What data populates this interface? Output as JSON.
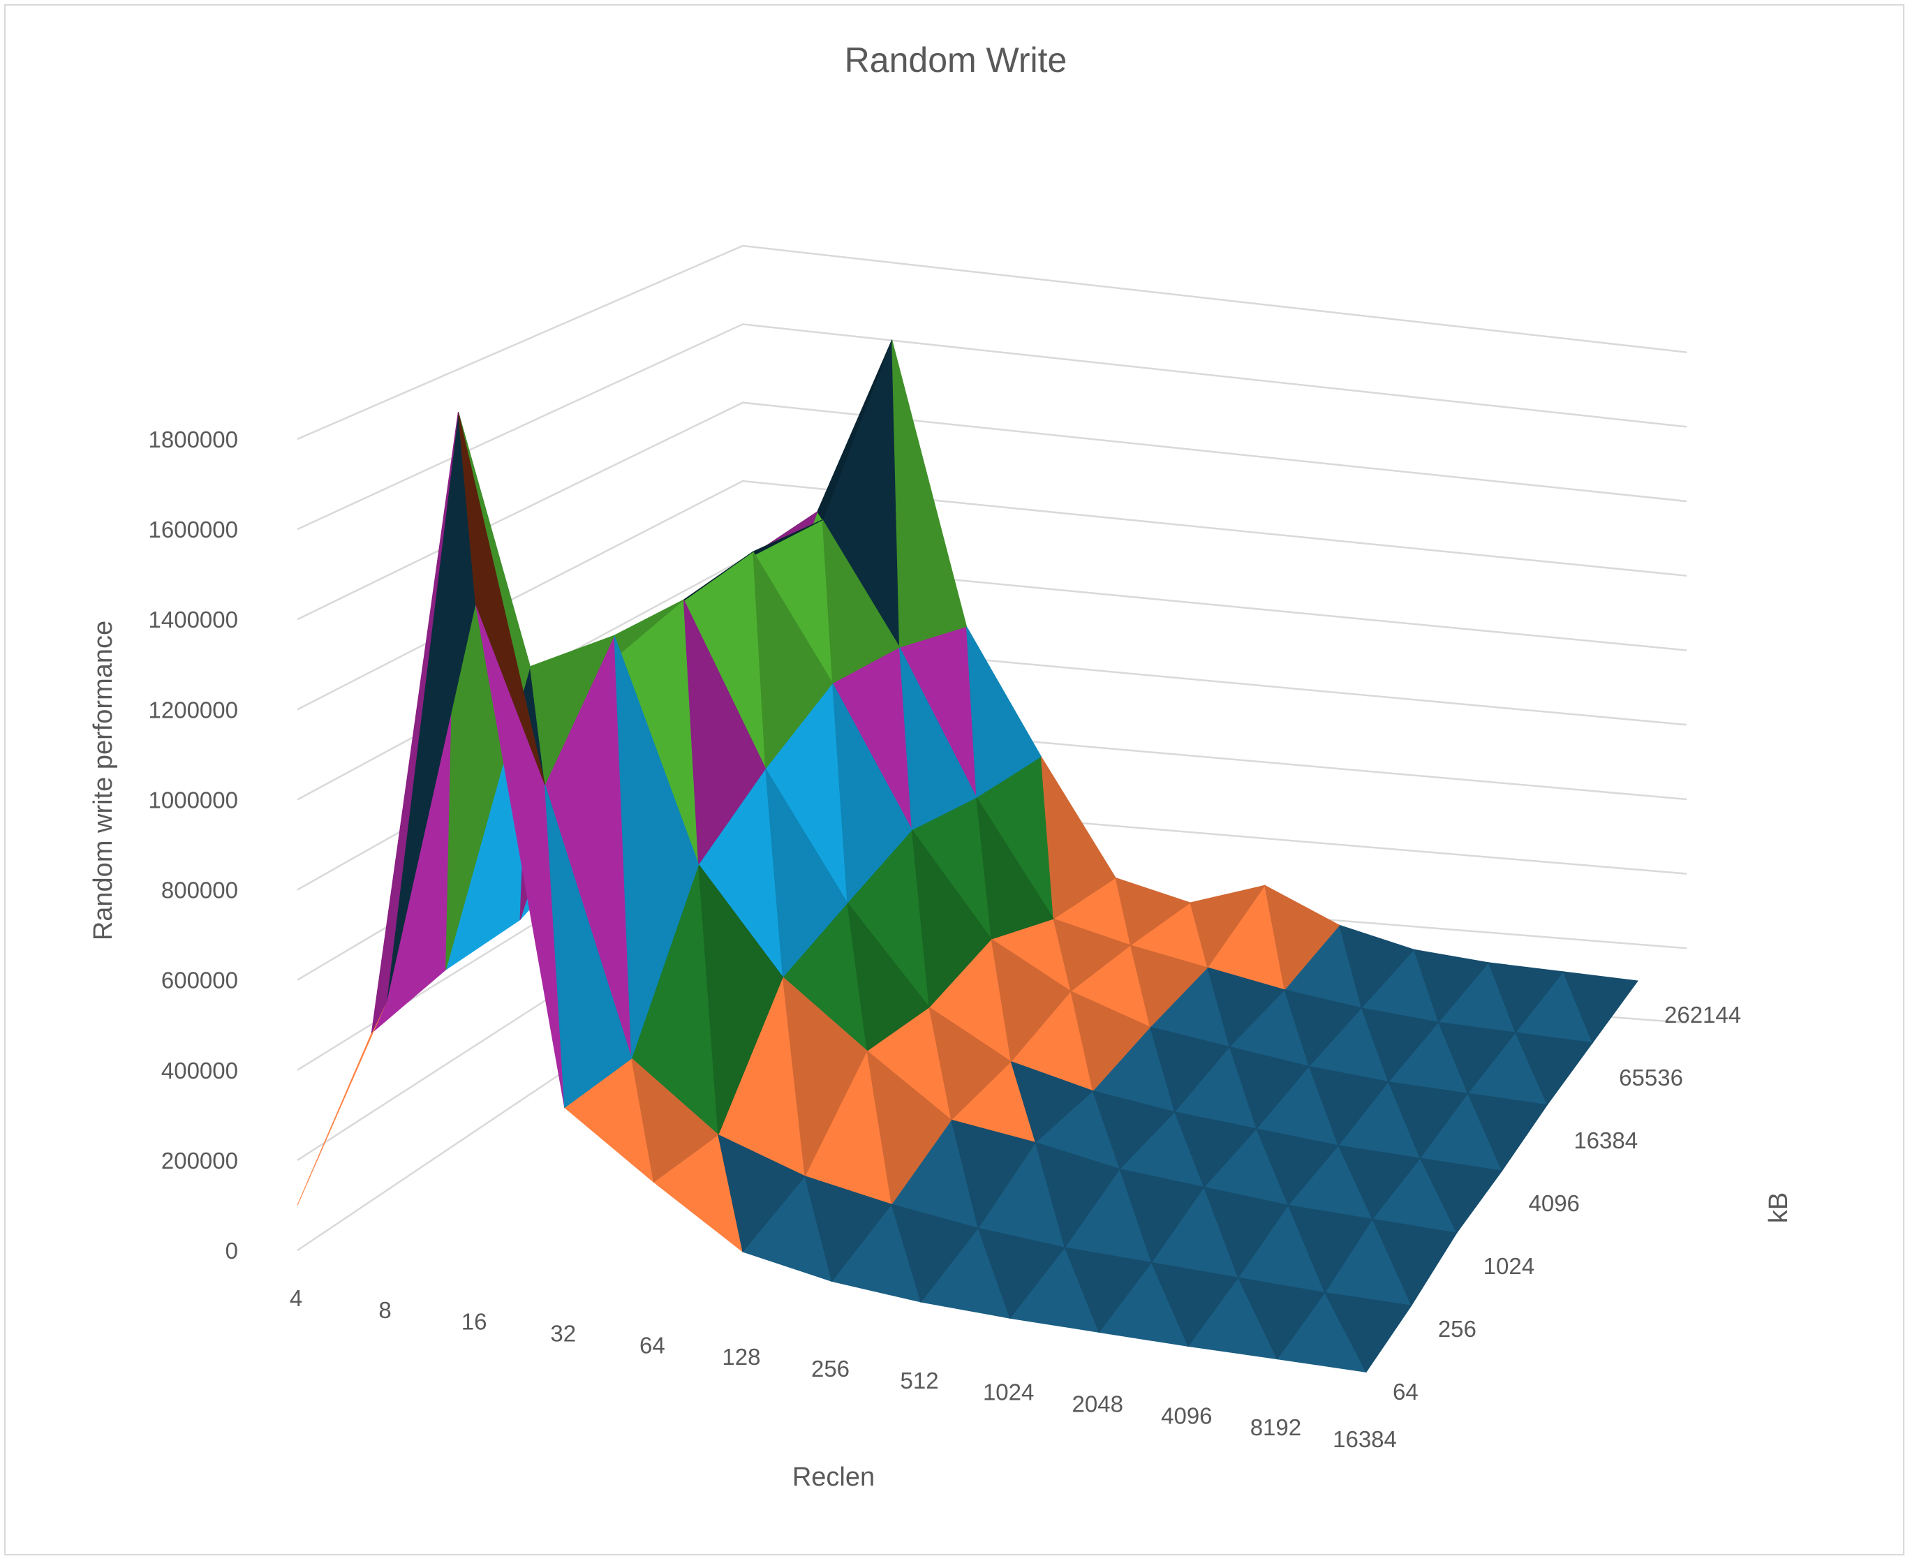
{
  "chart_data": {
    "type": "surface",
    "title": "Random Write",
    "xlabel": "Reclen",
    "ylabel": "Random write performance",
    "zlabel": "kB",
    "zlim": [
      0,
      1800000
    ],
    "z_ticks": [
      "0",
      "200000",
      "400000",
      "600000",
      "800000",
      "1000000",
      "1200000",
      "1400000",
      "1600000",
      "1800000"
    ],
    "x_categories": [
      "4",
      "8",
      "16",
      "32",
      "64",
      "128",
      "256",
      "512",
      "1024",
      "2048",
      "4096",
      "8192",
      "16384"
    ],
    "depth_categories": [
      "64",
      "256",
      "1024",
      "4096",
      "16384",
      "65536",
      "262144"
    ],
    "band_colors": [
      "#1b5e84",
      "#ff7f3f",
      "#1e7b2a",
      "#12a3df",
      "#a828a0",
      "#4db031",
      "#0b2c3d",
      "#6e2a10",
      "#234f1a"
    ],
    "grid": true,
    "series": [
      {
        "values": [
          100000,
          580000,
          1500000,
          400000,
          260000,
          130000,
          90000,
          70000,
          60000,
          55000,
          50000,
          48000,
          45000
        ]
      },
      {
        "values": [
          380000,
          1820000,
          1000000,
          400000,
          250000,
          180000,
          140000,
          110000,
          90000,
          80000,
          70000,
          60000,
          55000
        ]
      },
      {
        "values": [
          420000,
          1150000,
          1250000,
          740000,
          500000,
          350000,
          210000,
          180000,
          140000,
          120000,
          100000,
          90000,
          80000
        ]
      },
      {
        "values": [
          430000,
          1050000,
          1240000,
          860000,
          560000,
          330000,
          220000,
          170000,
          140000,
          120000,
          100000,
          90000,
          80000
        ]
      },
      {
        "values": [
          520000,
          1100000,
          1260000,
          960000,
          620000,
          370000,
          260000,
          190000,
          160000,
          130000,
          110000,
          100000,
          90000
        ]
      },
      {
        "values": [
          540000,
          1120000,
          1240000,
          940000,
          580000,
          290000,
          240000,
          200000,
          160000,
          130000,
          110000,
          100000,
          90000
        ]
      },
      {
        "values": [
          600000,
          1140000,
          1600000,
          880000,
          560000,
          260000,
          210000,
          270000,
          180000,
          130000,
          110000,
          100000,
          90000
        ]
      }
    ]
  }
}
